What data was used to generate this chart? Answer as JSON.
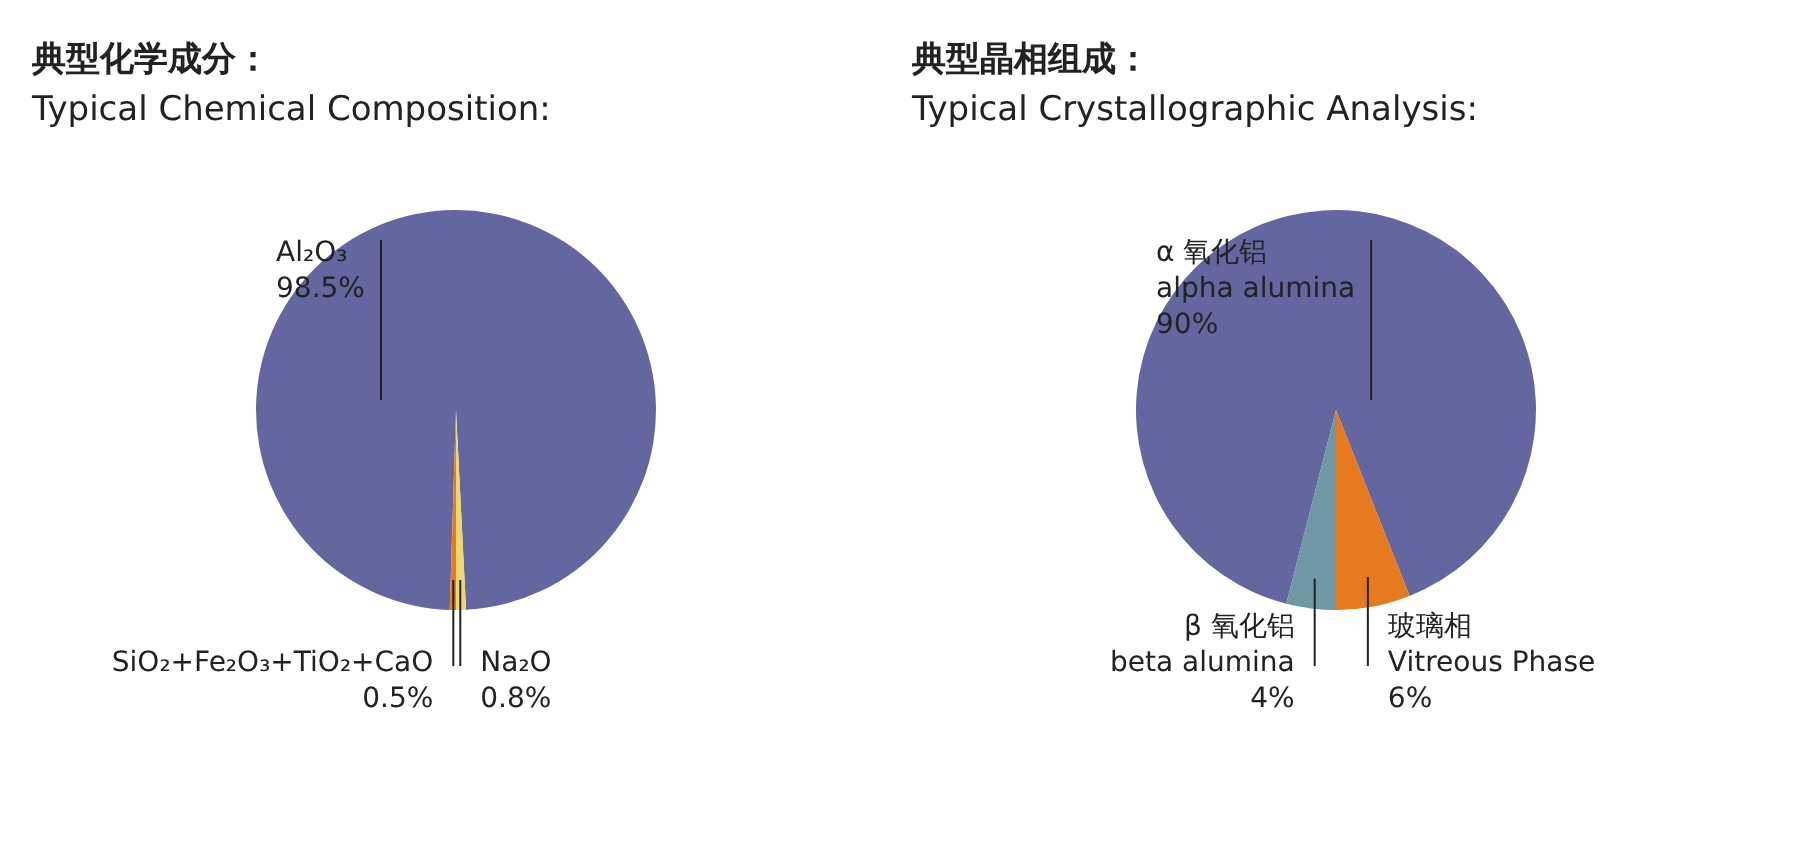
{
  "chart_data": [
    {
      "type": "pie",
      "title": "典型化学成分：",
      "subtitle": "Typical Chemical Composition:",
      "categories": [
        "Al₂O₃",
        "Na₂O",
        "SiO₂+Fe₂O₃+TiO₂+CaO"
      ],
      "values": [
        98.5,
        0.8,
        0.5
      ],
      "colors": [
        "#6466a0",
        "#ecd872",
        "#e67a1e"
      ],
      "value_labels": [
        "98.5%",
        "0.8%",
        "0.5%"
      ]
    },
    {
      "type": "pie",
      "title": "典型晶相组成：",
      "subtitle": "Typical Crystallographic Analysis:",
      "categories": [
        "α 氧化铝\nalpha alumina",
        "玻璃相\nVitreous Phase",
        "β 氧化铝\nbeta alumina"
      ],
      "values": [
        90,
        6,
        4
      ],
      "colors": [
        "#6466a0",
        "#e67a1e",
        "#6e98a4"
      ],
      "value_labels": [
        "90%",
        "6%",
        "4%"
      ]
    }
  ]
}
